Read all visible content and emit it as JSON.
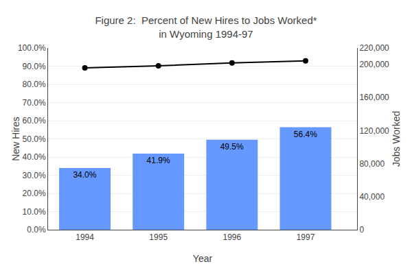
{
  "chart_data": {
    "type": "bar",
    "title": "Figure 2:  Percent of New Hires to Jobs Worked*\nin Wyoming 1994-97",
    "xlabel": "Year",
    "ylabel": "New Hires",
    "y2label": "Jobs Worked",
    "x": [
      1994,
      1995,
      1996,
      1997
    ],
    "xlim": [
      1993.5,
      1997.7
    ],
    "xticks": [
      1994,
      1995,
      1996,
      1997
    ],
    "ylim": [
      0,
      100
    ],
    "yticks": [
      {
        "value": 0,
        "label": "0.0%"
      },
      {
        "value": 10,
        "label": "10.0%"
      },
      {
        "value": 20,
        "label": "20.0%"
      },
      {
        "value": 30,
        "label": "30.0%"
      },
      {
        "value": 40,
        "label": "40.0%"
      },
      {
        "value": 50,
        "label": "50.0%"
      },
      {
        "value": 60,
        "label": "60.0%"
      },
      {
        "value": 70,
        "label": "70.0%"
      },
      {
        "value": 80,
        "label": "80.0%"
      },
      {
        "value": 90,
        "label": "90.0%"
      },
      {
        "value": 100,
        "label": "100.0%"
      }
    ],
    "y2lim": [
      0,
      220000
    ],
    "y2ticks": [
      0,
      {
        "value": 40000,
        "label": "40,000"
      },
      {
        "value": 80000,
        "label": "80,000"
      },
      {
        "value": 120000,
        "label": "120,000"
      },
      {
        "value": 160000,
        "label": "160,000"
      },
      {
        "value": 200000,
        "label": "200,000"
      },
      {
        "value": 220000,
        "label": "220,000"
      }
    ],
    "grid": true,
    "series": [
      {
        "type": "bar",
        "color": "#6699FF",
        "values": [
          34.0,
          41.9,
          49.5,
          56.4
        ],
        "value_labels": [
          "34.0%",
          "41.9%",
          "49.5%",
          "56.4%"
        ],
        "data_labels": true
      },
      {
        "type": "line",
        "color": "#000000",
        "marker": "circle",
        "axis": "y2",
        "values": [
          196000,
          198500,
          202000,
          204500
        ]
      }
    ]
  }
}
